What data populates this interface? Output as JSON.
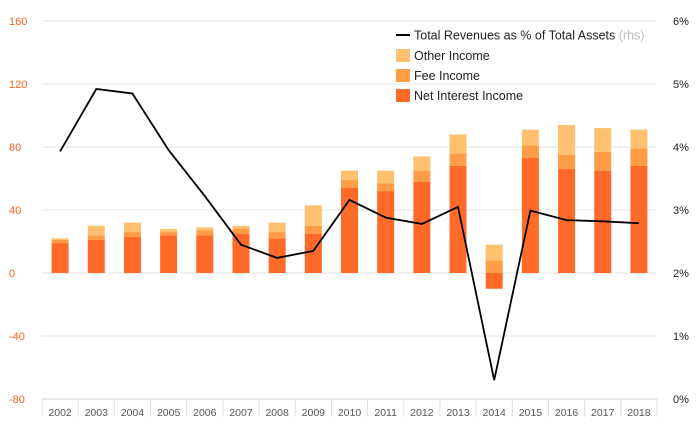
{
  "chart_data": {
    "type": "bar",
    "stacked": true,
    "categories": [
      "2002",
      "2003",
      "2004",
      "2005",
      "2006",
      "2007",
      "2008",
      "2009",
      "2010",
      "2011",
      "2012",
      "2013",
      "2014",
      "2015",
      "2016",
      "2017",
      "2018"
    ],
    "series": [
      {
        "name": "Net Interest Income",
        "axis": "left",
        "color": "#ff6a28",
        "values": [
          19,
          21,
          23,
          24,
          24,
          25,
          22,
          25,
          54,
          52,
          58,
          68,
          -10,
          73,
          66,
          65,
          68
        ]
      },
      {
        "name": "Fee Income",
        "axis": "left",
        "color": "#ff9c45",
        "values": [
          2,
          3,
          3,
          2,
          3,
          3,
          4,
          5,
          5,
          5,
          7,
          8,
          8,
          8,
          9,
          12,
          11
        ]
      },
      {
        "name": "Other Income",
        "axis": "left",
        "color": "#ffc170",
        "values": [
          1,
          6,
          6,
          2,
          2,
          2,
          6,
          13,
          6,
          8,
          9,
          12,
          10,
          10,
          19,
          15,
          12
        ]
      },
      {
        "name": "Total Revenues as % of Total Assets",
        "name_suffix": "(rhs)",
        "type": "line",
        "axis": "right",
        "color": "#000000",
        "values": [
          3.93,
          4.92,
          4.85,
          3.95,
          3.22,
          2.45,
          2.24,
          2.35,
          3.16,
          2.88,
          2.78,
          3.05,
          0.3,
          2.99,
          2.84,
          2.82,
          2.79
        ]
      }
    ],
    "yleft": {
      "min": -80,
      "max": 160,
      "ticks": [
        160,
        120,
        80,
        40,
        0,
        -40,
        -80
      ],
      "color": "#f26522"
    },
    "yright": {
      "min": 0,
      "max": 6,
      "ticks": [
        "6%",
        "5%",
        "4%",
        "3%",
        "2%",
        "1%",
        "0%"
      ]
    },
    "legend_position": "top-right",
    "grid": true
  }
}
